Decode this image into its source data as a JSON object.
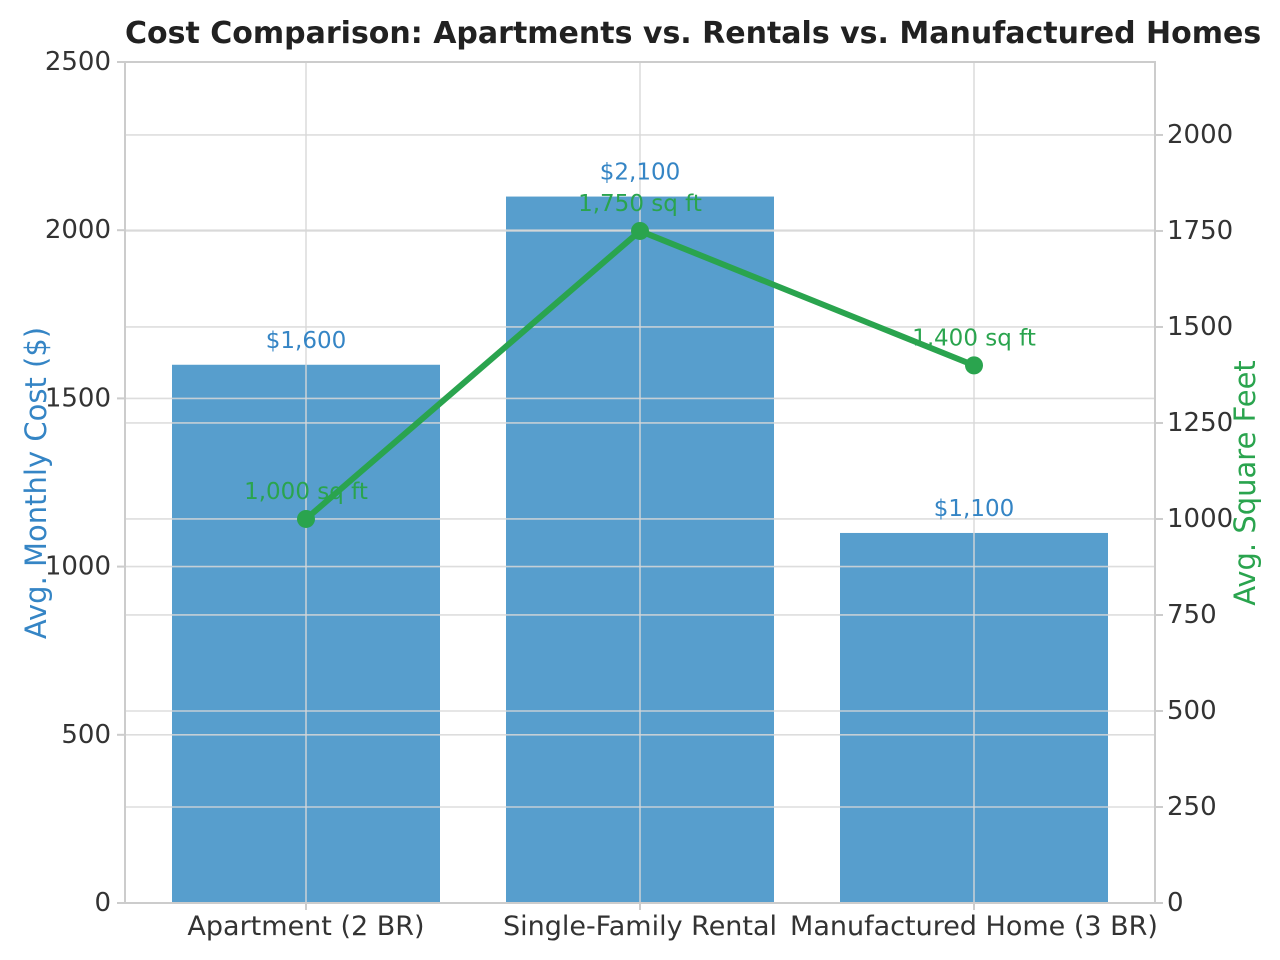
{
  "chart_data": {
    "type": "bar",
    "title": "Cost Comparison: Apartments vs. Rentals vs. Manufactured Homes",
    "categories": [
      "Apartment (2 BR)",
      "Single-Family Rental",
      "Manufactured Home (3 BR)"
    ],
    "series": [
      {
        "name": "Avg. Monthly Cost ($)",
        "type": "bar",
        "axis": "left",
        "values": [
          1600,
          2100,
          1100
        ],
        "labels": [
          "$1,600",
          "$2,100",
          "$1,100"
        ],
        "color": "#579ecd",
        "label_color": "#3585c5"
      },
      {
        "name": "Avg. Square Feet",
        "type": "line",
        "axis": "right",
        "values": [
          1000,
          1750,
          1400
        ],
        "labels": [
          "1,000 sq ft",
          "1,750 sq ft",
          "1,400 sq ft"
        ],
        "color": "#2aa44e",
        "label_color": "#2aa44e"
      }
    ],
    "left_axis": {
      "label": "Avg. Monthly Cost ($)",
      "ticks": [
        0,
        500,
        1000,
        1500,
        2000,
        2500
      ],
      "range": [
        0,
        2500
      ],
      "color": "#3585c5"
    },
    "right_axis": {
      "label": "Avg. Square Feet",
      "ticks": [
        0,
        250,
        500,
        750,
        1000,
        1250,
        1500,
        1750,
        2000
      ],
      "range": [
        0,
        2190
      ],
      "color": "#2aa44e"
    },
    "grid": true,
    "grid_color": "#dcdcdc",
    "spine_color": "#cccccc",
    "tick_text_color": "#333333",
    "title_color": "#212121",
    "background": "#ffffff",
    "legend": "none"
  }
}
